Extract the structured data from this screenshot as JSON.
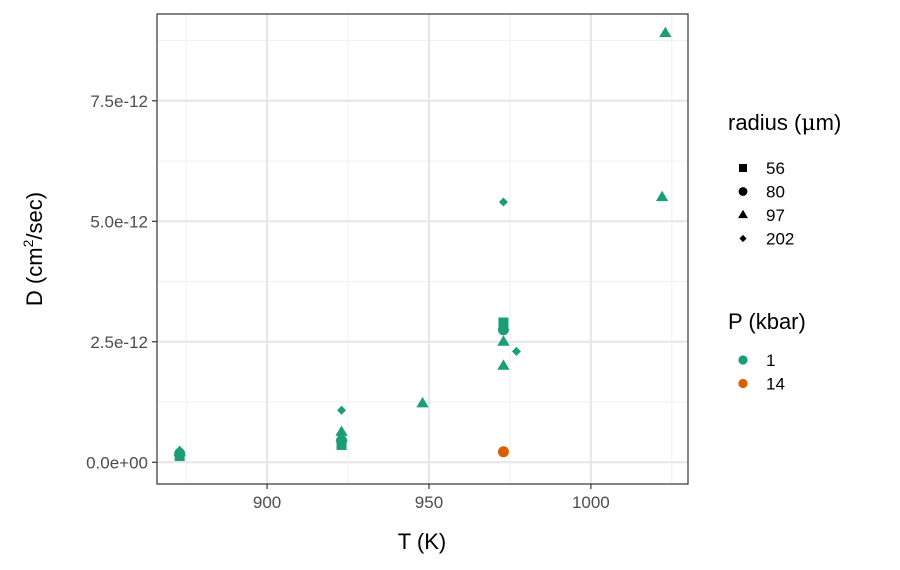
{
  "chart_data": {
    "type": "scatter",
    "title": "",
    "xlabel": "T (K)",
    "ylabel": {
      "prefix": "D (cm",
      "superscript": "2",
      "suffix": "/sec)"
    },
    "xlim": [
      866,
      1030
    ],
    "ylim": [
      -4.5e-13,
      9.3e-12
    ],
    "x_ticks": [
      {
        "value": 900,
        "label": "900"
      },
      {
        "value": 950,
        "label": "950"
      },
      {
        "value": 1000,
        "label": "1000"
      }
    ],
    "y_ticks": [
      {
        "value": 0,
        "label": "0.0e+00"
      },
      {
        "value": 2.5e-12,
        "label": "2.5e-12"
      },
      {
        "value": 5e-12,
        "label": "5.0e-12"
      },
      {
        "value": 7.5e-12,
        "label": "7.5e-12"
      }
    ],
    "grid": true,
    "legend_placement": "right",
    "shape_legend": {
      "title": {
        "prefix": "radius (",
        "mu": "μ",
        "suffix": "m)"
      },
      "entries": [
        {
          "label": "56",
          "shape": "square"
        },
        {
          "label": "80",
          "shape": "circle"
        },
        {
          "label": "97",
          "shape": "triangle"
        },
        {
          "label": "202",
          "shape": "diamond"
        }
      ]
    },
    "color_legend": {
      "title": "P (kbar)",
      "entries": [
        {
          "label": "1",
          "color": "#1b9e77"
        },
        {
          "label": "14",
          "color": "#d95f02"
        }
      ]
    },
    "points": [
      {
        "x": 873,
        "y": 1.3e-13,
        "radius": "56",
        "P": "1"
      },
      {
        "x": 873,
        "y": 1.8e-13,
        "radius": "80",
        "P": "1"
      },
      {
        "x": 873,
        "y": 2.1e-13,
        "radius": "97",
        "P": "1"
      },
      {
        "x": 873,
        "y": 2.5e-13,
        "radius": "202",
        "P": "1"
      },
      {
        "x": 923,
        "y": 3.6e-13,
        "radius": "56",
        "P": "1"
      },
      {
        "x": 923,
        "y": 4.5e-13,
        "radius": "80",
        "P": "1"
      },
      {
        "x": 923,
        "y": 5.3e-13,
        "radius": "97",
        "P": "1"
      },
      {
        "x": 923,
        "y": 6.3e-13,
        "radius": "97",
        "P": "1"
      },
      {
        "x": 923,
        "y": 1.08e-12,
        "radius": "202",
        "P": "1"
      },
      {
        "x": 948,
        "y": 1.22e-12,
        "radius": "97",
        "P": "1"
      },
      {
        "x": 973,
        "y": 2e-12,
        "radius": "97",
        "P": "1"
      },
      {
        "x": 973,
        "y": 2.5e-12,
        "radius": "97",
        "P": "1"
      },
      {
        "x": 973,
        "y": 2.75e-12,
        "radius": "80",
        "P": "1"
      },
      {
        "x": 973,
        "y": 2.9e-12,
        "radius": "56",
        "P": "1"
      },
      {
        "x": 973,
        "y": 5.4e-12,
        "radius": "202",
        "P": "1"
      },
      {
        "x": 977,
        "y": 2.3e-12,
        "radius": "202",
        "P": "1"
      },
      {
        "x": 973,
        "y": 2.2e-13,
        "radius": "80",
        "P": "14"
      },
      {
        "x": 1022,
        "y": 5.5e-12,
        "radius": "97",
        "P": "1"
      },
      {
        "x": 1023,
        "y": 8.9e-12,
        "radius": "97",
        "P": "1"
      }
    ]
  }
}
